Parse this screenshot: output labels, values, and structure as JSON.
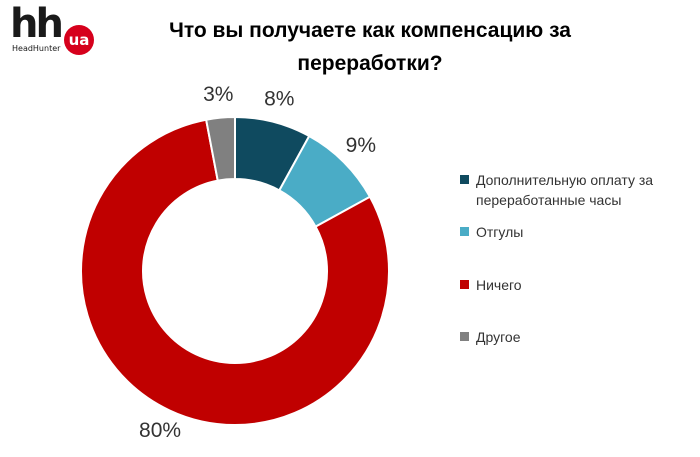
{
  "logo": {
    "wordmark": "hh",
    "badge_text": "ua",
    "subtitle": "HeadHunter",
    "badge_color": "#d6001c"
  },
  "chart_data": {
    "type": "pie",
    "donut": true,
    "title": "Что вы получаете как компенсацию за переработки?",
    "legend_position": "right",
    "series": [
      {
        "name": "Дополнительную оплату за переработанные часы",
        "value": 8,
        "label": "8%",
        "color": "#0f4a5f"
      },
      {
        "name": "Отгулы",
        "value": 9,
        "label": "9%",
        "color": "#4aacc6"
      },
      {
        "name": "Ничего",
        "value": 80,
        "label": "80%",
        "color": "#c00000"
      },
      {
        "name": "Другое",
        "value": 3,
        "label": "3%",
        "color": "#808080"
      }
    ]
  }
}
